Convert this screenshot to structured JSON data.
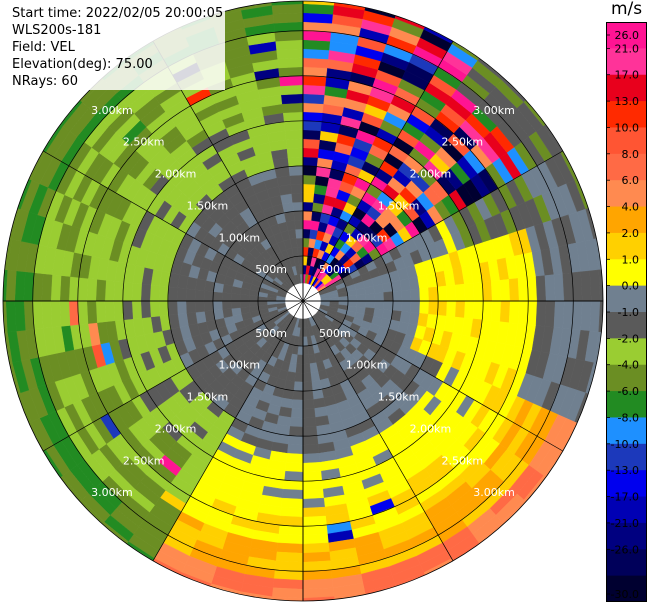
{
  "header": {
    "start_time": "Start time: 2022/02/05 20:00:05",
    "instrument": "WLS200s-181",
    "field": "Field: VEL",
    "elevation": "Elevation(deg): 75.00",
    "nrays": "NRays: 60"
  },
  "chart_data": {
    "type": "heatmap",
    "projection": "polar-ppi",
    "nrays": 60,
    "range_unit": "km",
    "range_max_km": 3.33,
    "range_gates_km": 0.1,
    "range_rings_km": [
      0.5,
      1.0,
      1.5,
      2.0,
      2.5,
      3.0
    ],
    "range_ring_labels": [
      "500m",
      "1.00km",
      "1.50km",
      "2.00km",
      "2.50km",
      "3.00km"
    ],
    "azimuth_spokes_deg": [
      0,
      30,
      60,
      90,
      120,
      150,
      180,
      210,
      240,
      270,
      300,
      330
    ],
    "field": "VEL",
    "colorbar": {
      "unit": "m/s",
      "tick_labels": [
        "26.0",
        "21.0",
        "17.0",
        "13.0",
        "10.0",
        "8.0",
        "6.0",
        "4.0",
        "2.0",
        "1.0",
        "0.0",
        "-1.0",
        "-2.0",
        "-4.0",
        "-6.0",
        "-8.0",
        "-10.0",
        "-13.0",
        "-17.0",
        "-21.0",
        "-26.0",
        "-30.0"
      ],
      "bins": [
        {
          "min": 26,
          "max": 30,
          "color": "#ff1493"
        },
        {
          "min": 21,
          "max": 26,
          "color": "#ff3399"
        },
        {
          "min": 17,
          "max": 21,
          "color": "#e8001c"
        },
        {
          "min": 13,
          "max": 17,
          "color": "#ff2a00"
        },
        {
          "min": 10,
          "max": 13,
          "color": "#ff5533"
        },
        {
          "min": 8,
          "max": 10,
          "color": "#ff6a45"
        },
        {
          "min": 6,
          "max": 8,
          "color": "#ff8a50"
        },
        {
          "min": 4,
          "max": 6,
          "color": "#ffa500"
        },
        {
          "min": 2,
          "max": 4,
          "color": "#ffd000"
        },
        {
          "min": 1,
          "max": 2,
          "color": "#ffff00"
        },
        {
          "min": 0,
          "max": 1,
          "color": "#708090"
        },
        {
          "min": -1,
          "max": 0,
          "color": "#5a5a5a"
        },
        {
          "min": -2,
          "max": -1,
          "color": "#9acd32"
        },
        {
          "min": -4,
          "max": -2,
          "color": "#6b8e23"
        },
        {
          "min": -6,
          "max": -4,
          "color": "#228b22"
        },
        {
          "min": -8,
          "max": -6,
          "color": "#1e90ff"
        },
        {
          "min": -10,
          "max": -8,
          "color": "#1c39bb"
        },
        {
          "min": -13,
          "max": -10,
          "color": "#0000ee"
        },
        {
          "min": -17,
          "max": -13,
          "color": "#0000b4"
        },
        {
          "min": -21,
          "max": -17,
          "color": "#000080"
        },
        {
          "min": -26,
          "max": -21,
          "color": "#00005a"
        },
        {
          "min": -30,
          "max": -26,
          "color": "#000030"
        }
      ]
    },
    "velocity_pattern": {
      "north_sector_az_deg": [
        0,
        58
      ],
      "north_sector_values_m_s": "mixed, -30 to 30",
      "western_sector_values_m_s": [
        -4,
        -1
      ],
      "eastern_sector_values_m_s": [
        -1,
        0
      ],
      "southern_sector_values_m_s": [
        1,
        10
      ]
    }
  }
}
